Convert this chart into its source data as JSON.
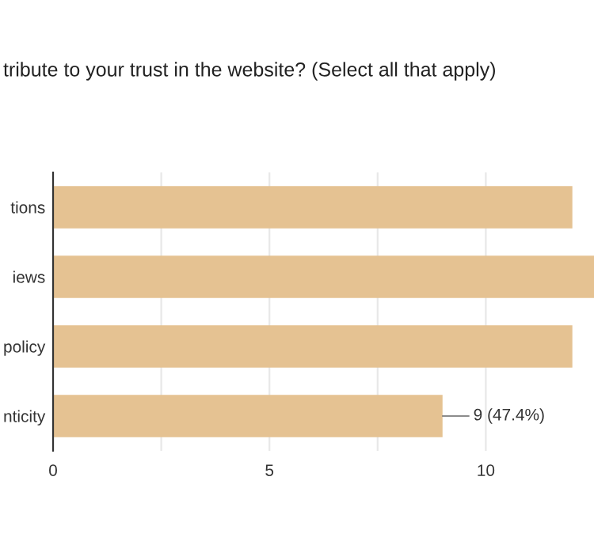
{
  "chart_data": {
    "type": "bar",
    "orientation": "horizontal",
    "title": "tribute to your trust in the website? (Select all that apply)",
    "categories": [
      "tions",
      "iews",
      "policy",
      "nticity"
    ],
    "values": [
      12,
      12.5,
      12,
      9
    ],
    "value_labels": [
      null,
      null,
      null,
      "9 (47.4%)"
    ],
    "color": "#e5c292",
    "xlim": [
      0,
      12.5
    ],
    "xticks": [
      0,
      {
        "value": 2.5,
        "label": null
      },
      5,
      {
        "value": 7.5,
        "label": null
      },
      10
    ],
    "grid": "x"
  }
}
